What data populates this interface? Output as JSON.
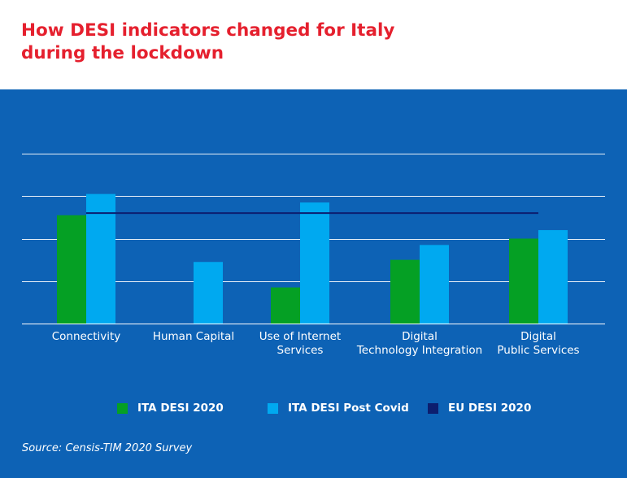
{
  "title": {
    "line1": "How DESI indicators changed for Italy",
    "line2": "during the lockdown"
  },
  "chart_data": {
    "type": "bar",
    "title": "How DESI indicators changed for Italy during the lockdown",
    "categories": [
      [
        "Connectivity"
      ],
      [
        "Human Capital"
      ],
      [
        "Use of Internet",
        "Services"
      ],
      [
        "Digital",
        "Technology Integration"
      ],
      [
        "Digital",
        "Public Services"
      ]
    ],
    "series": [
      {
        "name": "ITA DESI 2020",
        "color": "#05a024",
        "values": [
          51,
          null,
          17,
          30,
          40
        ]
      },
      {
        "name": "ITA DESI Post Covid",
        "color": "#00a9f0",
        "values": [
          61,
          29,
          57,
          37,
          44
        ]
      }
    ],
    "reference_line": {
      "name": "EU DESI 2020",
      "color": "#0c1e6f",
      "value": 52
    },
    "ylim": [
      0,
      80
    ],
    "y_gridlines": [
      20,
      40,
      60,
      80
    ],
    "grid": true,
    "axis_tick_labels_shown": false,
    "legend": "bottom"
  },
  "source": "Source: Censis-TIM 2020 Survey",
  "colors": {
    "title": "#e5202e",
    "panel_background": "#0d62b5",
    "gridline": "#ffffff"
  }
}
